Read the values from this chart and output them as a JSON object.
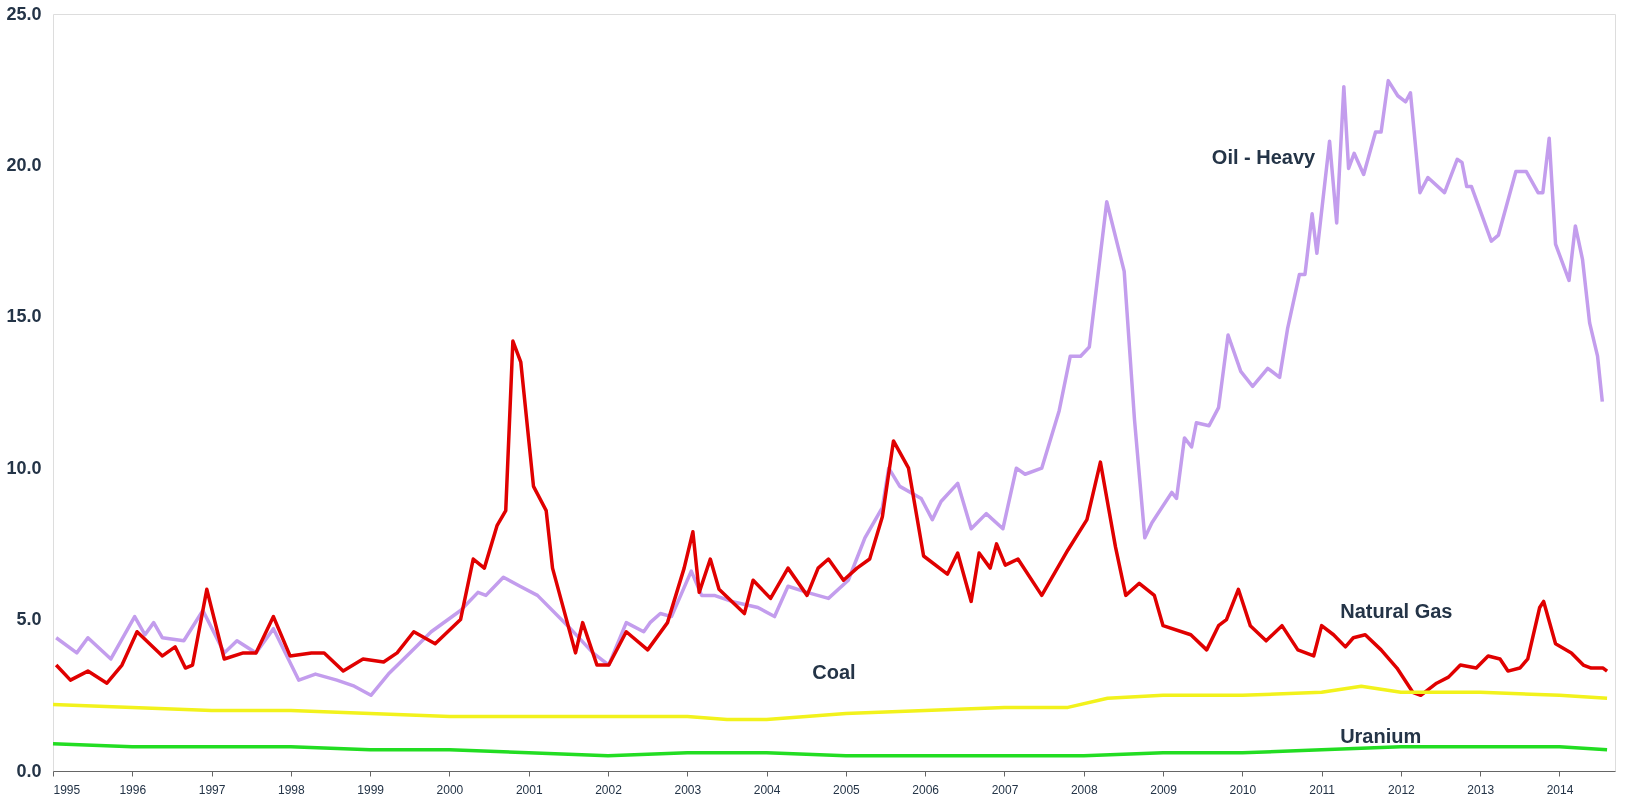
{
  "chart_data": {
    "type": "line",
    "xlim": [
      1995,
      2014.7
    ],
    "xticks": [
      1995,
      1996,
      1997,
      1998,
      1999,
      2000,
      2001,
      2002,
      2003,
      2004,
      2005,
      2006,
      2007,
      2008,
      2009,
      2010,
      2011,
      2012,
      2013,
      2014
    ],
    "ylim": [
      0,
      25
    ],
    "yticks": [
      {
        "value": 0,
        "label": "0.0"
      },
      {
        "value": 5,
        "label": "5.0"
      },
      {
        "value": 10,
        "label": "10.0"
      },
      {
        "value": 15,
        "label": "15.0"
      },
      {
        "value": 20,
        "label": "20.0"
      },
      {
        "value": 25,
        "label": "25.0"
      }
    ],
    "series": [
      {
        "name": "Oil - Heavy",
        "color": "#c39ded",
        "x": [
          1995.04,
          1995.3,
          1995.44,
          1995.73,
          1996.03,
          1996.16,
          1996.27,
          1996.38,
          1996.65,
          1996.89,
          1997.16,
          1997.32,
          1997.56,
          1997.78,
          1998.1,
          1998.31,
          1998.58,
          1998.8,
          1999.01,
          1999.23,
          1999.5,
          1999.77,
          2000.14,
          2000.36,
          2000.46,
          2000.68,
          2000.89,
          2001.11,
          2001.49,
          2001.81,
          2002.01,
          2002.23,
          2002.45,
          2002.53,
          2002.66,
          2002.8,
          2003.05,
          2003.18,
          2003.34,
          2003.56,
          2003.89,
          2004.1,
          2004.27,
          2004.51,
          2004.78,
          2005.03,
          2005.24,
          2005.46,
          2005.54,
          2005.68,
          2005.95,
          2006.09,
          2006.2,
          2006.41,
          2006.58,
          2006.77,
          2006.98,
          2007.15,
          2007.26,
          2007.47,
          2007.69,
          2007.83,
          2007.96,
          2008.07,
          2008.29,
          2008.51,
          2008.64,
          2008.77,
          2008.86,
          2009.11,
          2009.17,
          2009.27,
          2009.36,
          2009.42,
          2009.58,
          2009.7,
          2009.82,
          2009.98,
          2010.13,
          2010.32,
          2010.47,
          2010.57,
          2010.72,
          2010.79,
          2010.88,
          2010.94,
          2011.1,
          2011.19,
          2011.28,
          2011.34,
          2011.41,
          2011.53,
          2011.68,
          2011.75,
          2011.84,
          2011.96,
          2012.06,
          2012.12,
          2012.24,
          2012.34,
          2012.55,
          2012.71,
          2012.77,
          2012.83,
          2012.89,
          2013.14,
          2013.23,
          2013.45,
          2013.58,
          2013.73,
          2013.79,
          2013.87,
          2013.95,
          2014.12,
          2014.2,
          2014.29,
          2014.38,
          2014.48,
          2014.54
        ],
        "values": [
          4.4,
          3.9,
          4.4,
          3.7,
          5.1,
          4.5,
          4.9,
          4.4,
          4.3,
          5.3,
          3.9,
          4.3,
          3.9,
          4.7,
          3.0,
          3.2,
          3.0,
          2.8,
          2.5,
          3.2,
          3.9,
          4.6,
          5.3,
          5.9,
          5.8,
          6.4,
          6.1,
          5.8,
          4.8,
          3.9,
          3.5,
          4.9,
          4.6,
          4.9,
          5.2,
          5.1,
          6.6,
          5.8,
          5.8,
          5.6,
          5.4,
          5.1,
          6.1,
          5.9,
          5.7,
          6.3,
          7.7,
          8.7,
          10.0,
          9.4,
          9.0,
          8.3,
          8.9,
          9.5,
          8.0,
          8.5,
          8.0,
          10.0,
          9.8,
          10.0,
          11.9,
          13.7,
          13.7,
          14.0,
          18.8,
          16.5,
          11.6,
          7.7,
          8.2,
          9.2,
          9.0,
          11.0,
          10.7,
          11.5,
          11.4,
          12.0,
          14.4,
          13.2,
          12.7,
          13.3,
          13.0,
          14.6,
          16.4,
          16.4,
          18.4,
          17.1,
          20.8,
          18.1,
          22.6,
          19.9,
          20.4,
          19.7,
          21.1,
          21.1,
          22.8,
          22.3,
          22.1,
          22.4,
          19.1,
          19.6,
          19.1,
          20.2,
          20.1,
          19.3,
          19.3,
          17.5,
          17.7,
          19.8,
          19.8,
          19.1,
          19.1,
          20.9,
          17.4,
          16.2,
          18.0,
          16.9,
          14.8,
          13.7,
          12.2
        ]
      },
      {
        "name": "Natural Gas",
        "color": "#e00000",
        "x": [
          1995.04,
          1995.22,
          1995.44,
          1995.68,
          1995.87,
          1996.06,
          1996.38,
          1996.54,
          1996.67,
          1996.76,
          1996.94,
          1997.16,
          1997.4,
          1997.56,
          1997.78,
          1997.99,
          1998.26,
          1998.42,
          1998.66,
          1998.91,
          1999.17,
          1999.34,
          1999.55,
          1999.82,
          2000.14,
          2000.3,
          2000.44,
          2000.6,
          2000.71,
          2000.8,
          2000.9,
          2001.06,
          2001.22,
          2001.3,
          2001.59,
          2001.68,
          2001.86,
          2002.01,
          2002.23,
          2002.5,
          2002.75,
          2002.96,
          2003.07,
          2003.15,
          2003.29,
          2003.4,
          2003.72,
          2003.83,
          2004.05,
          2004.27,
          2004.51,
          2004.65,
          2004.78,
          2004.97,
          2005.14,
          2005.3,
          2005.46,
          2005.6,
          2005.79,
          2005.98,
          2006.28,
          2006.41,
          2006.58,
          2006.68,
          2006.82,
          2006.9,
          2007.01,
          2007.17,
          2007.47,
          2007.8,
          2008.04,
          2008.21,
          2008.4,
          2008.53,
          2008.7,
          2008.89,
          2009.0,
          2009.35,
          2009.55,
          2009.7,
          2009.8,
          2009.95,
          2010.1,
          2010.3,
          2010.5,
          2010.7,
          2010.9,
          2011.0,
          2011.15,
          2011.3,
          2011.4,
          2011.55,
          2011.75,
          2011.95,
          2012.15,
          2012.25,
          2012.45,
          2012.6,
          2012.75,
          2012.95,
          2013.1,
          2013.25,
          2013.35,
          2013.5,
          2013.6,
          2013.75,
          2013.8,
          2013.95,
          2014.15,
          2014.3,
          2014.4,
          2014.55,
          2014.6
        ],
        "values": [
          3.5,
          3.0,
          3.3,
          2.9,
          3.5,
          4.6,
          3.8,
          4.1,
          3.4,
          3.5,
          6.0,
          3.7,
          3.9,
          3.9,
          5.1,
          3.8,
          3.9,
          3.9,
          3.3,
          3.7,
          3.6,
          3.9,
          4.6,
          4.2,
          5.0,
          7.0,
          6.7,
          8.1,
          8.6,
          14.2,
          13.5,
          9.4,
          8.6,
          6.7,
          3.9,
          4.9,
          3.5,
          3.5,
          4.6,
          4.0,
          4.9,
          6.7,
          7.9,
          5.9,
          7.0,
          6.0,
          5.2,
          6.3,
          5.7,
          6.7,
          5.8,
          6.7,
          7.0,
          6.3,
          6.7,
          7.0,
          8.4,
          10.9,
          10.0,
          7.1,
          6.5,
          7.2,
          5.6,
          7.2,
          6.7,
          7.5,
          6.8,
          7.0,
          5.8,
          7.3,
          8.3,
          10.2,
          7.4,
          5.8,
          6.2,
          5.8,
          4.8,
          4.5,
          4.0,
          4.8,
          5.0,
          6.0,
          4.8,
          4.3,
          4.8,
          4.0,
          3.8,
          4.8,
          4.5,
          4.1,
          4.4,
          4.5,
          4.0,
          3.4,
          2.6,
          2.5,
          2.9,
          3.1,
          3.5,
          3.4,
          3.8,
          3.7,
          3.3,
          3.4,
          3.7,
          5.4,
          5.6,
          4.2,
          3.9,
          3.5,
          3.4,
          3.4,
          3.3
        ]
      },
      {
        "name": "Coal",
        "color": "#f2f21c",
        "x": [
          1995.0,
          1996.0,
          1997.0,
          1998.0,
          1999.0,
          2000.0,
          2001.0,
          2002.0,
          2003.0,
          2003.5,
          2004.0,
          2005.0,
          2006.0,
          2007.0,
          2007.8,
          2008.3,
          2009.0,
          2010.0,
          2011.0,
          2011.5,
          2012.0,
          2013.0,
          2014.0,
          2014.6
        ],
        "values": [
          2.2,
          2.1,
          2.0,
          2.0,
          1.9,
          1.8,
          1.8,
          1.8,
          1.8,
          1.7,
          1.7,
          1.9,
          2.0,
          2.1,
          2.1,
          2.4,
          2.5,
          2.5,
          2.6,
          2.8,
          2.6,
          2.6,
          2.5,
          2.4
        ]
      },
      {
        "name": "Uranium",
        "color": "#22dd22",
        "x": [
          1995.0,
          1996.0,
          1997.0,
          1998.0,
          1999.0,
          2000.0,
          2001.0,
          2002.0,
          2003.0,
          2004.0,
          2005.0,
          2006.0,
          2007.0,
          2008.0,
          2009.0,
          2010.0,
          2011.0,
          2012.0,
          2013.0,
          2014.0,
          2014.6
        ],
        "values": [
          0.9,
          0.8,
          0.8,
          0.8,
          0.7,
          0.7,
          0.6,
          0.5,
          0.6,
          0.6,
          0.5,
          0.5,
          0.5,
          0.5,
          0.6,
          0.6,
          0.7,
          0.8,
          0.8,
          0.8,
          0.7
        ]
      }
    ]
  }
}
